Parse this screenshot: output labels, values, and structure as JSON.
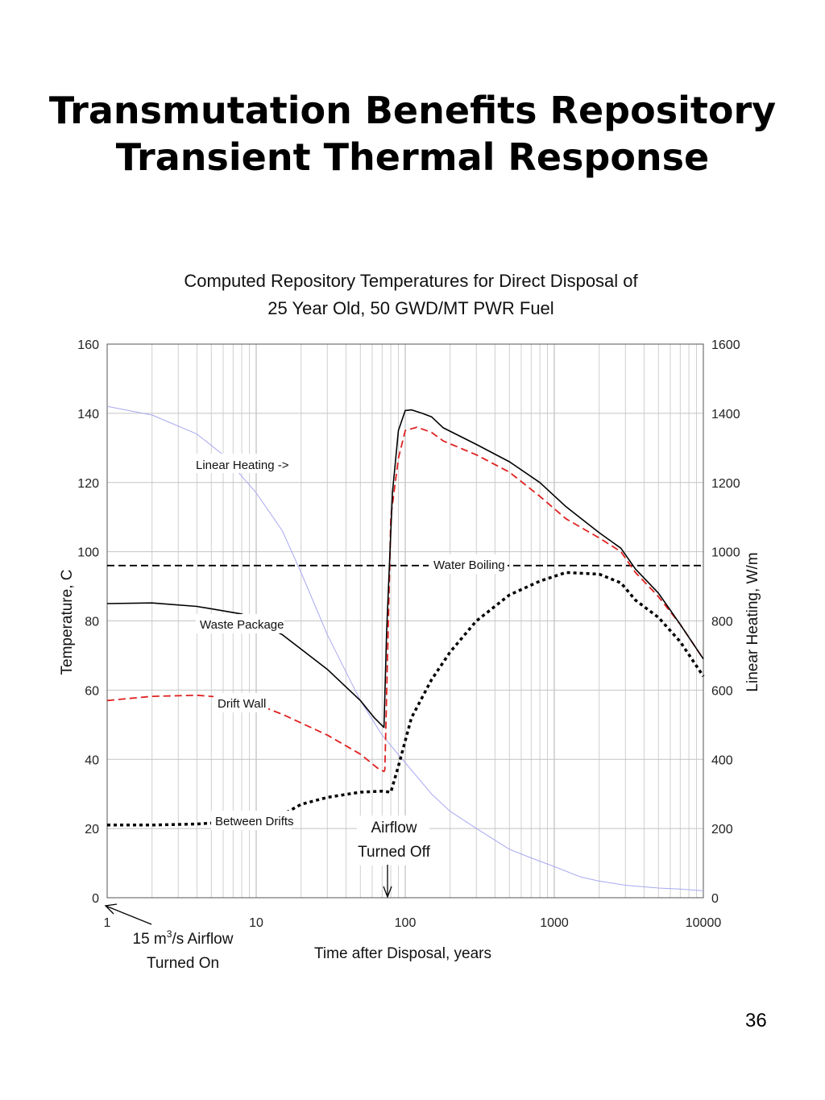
{
  "slide": {
    "title_line1": "Transmutation Benefits Repository",
    "title_line2": "Transient Thermal Response",
    "page_number": "36"
  },
  "chart_data": {
    "type": "line",
    "title_line1": "Computed Repository Temperatures for Direct Disposal of",
    "title_line2": "25 Year Old, 50 GWD/MT PWR Fuel",
    "xlabel": "Time after Disposal, years",
    "ylabel": "Temperature, C",
    "y2label": "Linear Heating, W/m",
    "xscale": "log",
    "xlim": [
      1,
      10000
    ],
    "ylim": [
      0,
      160
    ],
    "y2lim": [
      0,
      1600
    ],
    "grid": true,
    "xticks": [
      "1",
      "10",
      "100",
      "1000",
      "10000"
    ],
    "yticks": [
      "0",
      "20",
      "40",
      "60",
      "80",
      "100",
      "120",
      "140",
      "160"
    ],
    "y2ticks": [
      "0",
      "200",
      "400",
      "600",
      "800",
      "1000",
      "1200",
      "1400",
      "1600"
    ],
    "series": [
      {
        "name": "Waste Package",
        "color": "#000000",
        "style": "solid",
        "axis": "left",
        "x": [
          1,
          2,
          4,
          8,
          15,
          30,
          50,
          62,
          72,
          75,
          82,
          90,
          100,
          110,
          130,
          150,
          180,
          300,
          500,
          800,
          1200,
          2000,
          2800,
          3500,
          5000,
          7000,
          10000
        ],
        "y": [
          85,
          85.2,
          84.2,
          82,
          76,
          66,
          57,
          52,
          49.2,
          77,
          117,
          135,
          140.8,
          141,
          140,
          139,
          135.8,
          131,
          126,
          120,
          113,
          105.5,
          101,
          95,
          88,
          79,
          69
        ]
      },
      {
        "name": "Drift Wall",
        "color": "#e02020",
        "style": "dashed",
        "axis": "left",
        "x": [
          1,
          2,
          4,
          8,
          15,
          30,
          50,
          65,
          72,
          73,
          80,
          90,
          100,
          120,
          150,
          180,
          300,
          500,
          800,
          1200,
          2000,
          2800,
          3500,
          5000,
          7000,
          10000
        ],
        "y": [
          57,
          58.2,
          58.5,
          57.5,
          53,
          47,
          41.5,
          37.5,
          36.5,
          37,
          110,
          127,
          135,
          136,
          134.5,
          132,
          128,
          123,
          116,
          109.5,
          104,
          100,
          94,
          87,
          79,
          69
        ]
      },
      {
        "name": "Between Drifts",
        "color": "#000000",
        "style": "dotted",
        "axis": "left",
        "x": [
          1,
          2,
          4,
          6,
          10,
          15,
          20,
          30,
          50,
          70,
          80,
          90,
          110,
          150,
          200,
          300,
          500,
          800,
          1200,
          2000,
          2800,
          3500,
          5000,
          7000,
          10000
        ],
        "y": [
          21,
          21,
          21.3,
          21.8,
          22.5,
          24,
          27,
          29,
          30.5,
          30.8,
          30.5,
          38,
          52,
          63,
          71,
          80,
          87.5,
          91.5,
          94,
          93.5,
          91,
          86,
          81,
          74,
          64
        ]
      },
      {
        "name": "Linear Heating ->",
        "color": "#a8a8f2",
        "style": "thin",
        "axis": "right",
        "x": [
          1,
          2,
          4,
          6,
          10,
          15,
          20,
          30,
          50,
          70,
          100,
          150,
          200,
          300,
          500,
          700,
          1000,
          1500,
          2000,
          3000,
          5000,
          7000,
          10000
        ],
        "y": [
          1420,
          1395,
          1340,
          1280,
          1170,
          1060,
          940,
          760,
          570,
          470,
          390,
          300,
          250,
          200,
          140,
          115,
          90,
          60,
          48,
          36,
          28,
          25,
          20
        ]
      },
      {
        "name": "Water Boiling",
        "color": "#000000",
        "style": "dashed",
        "axis": "left",
        "x": [
          1,
          10000
        ],
        "y": [
          96,
          96
        ]
      }
    ],
    "annotations": [
      {
        "text": "Airflow",
        "x": 80
      },
      {
        "text": "Turned Off",
        "x": 80
      },
      {
        "text": "15 m",
        "sup": "3",
        "rest": "/s Airflow",
        "x": 1
      },
      {
        "text": "Turned On",
        "x": 1
      }
    ]
  }
}
